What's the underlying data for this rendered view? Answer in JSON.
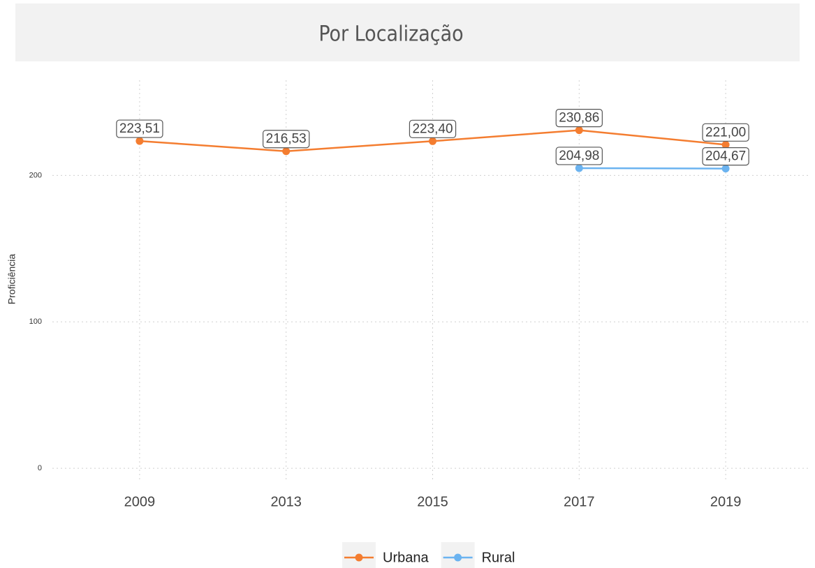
{
  "chart_data": {
    "type": "line",
    "title": "Por Localização",
    "y_label": "Proficiência",
    "categories": [
      "2009",
      "2013",
      "2015",
      "2017",
      "2019"
    ],
    "series": [
      {
        "name": "Urbana",
        "color": "#f47d30",
        "values": [
          223.51,
          216.53,
          223.4,
          230.86,
          221.0
        ],
        "value_labels": [
          "223,51",
          "216,53",
          "223,40",
          "230,86",
          "221,00"
        ]
      },
      {
        "name": "Rural",
        "color": "#6bb3f0",
        "values": [
          null,
          null,
          null,
          204.98,
          204.67
        ],
        "value_labels": [
          null,
          null,
          null,
          "204,98",
          "204,67"
        ]
      }
    ],
    "ylim": [
      -9,
      265
    ],
    "yticks": [
      0,
      100,
      200
    ],
    "grid": true,
    "legend": "bottom"
  }
}
